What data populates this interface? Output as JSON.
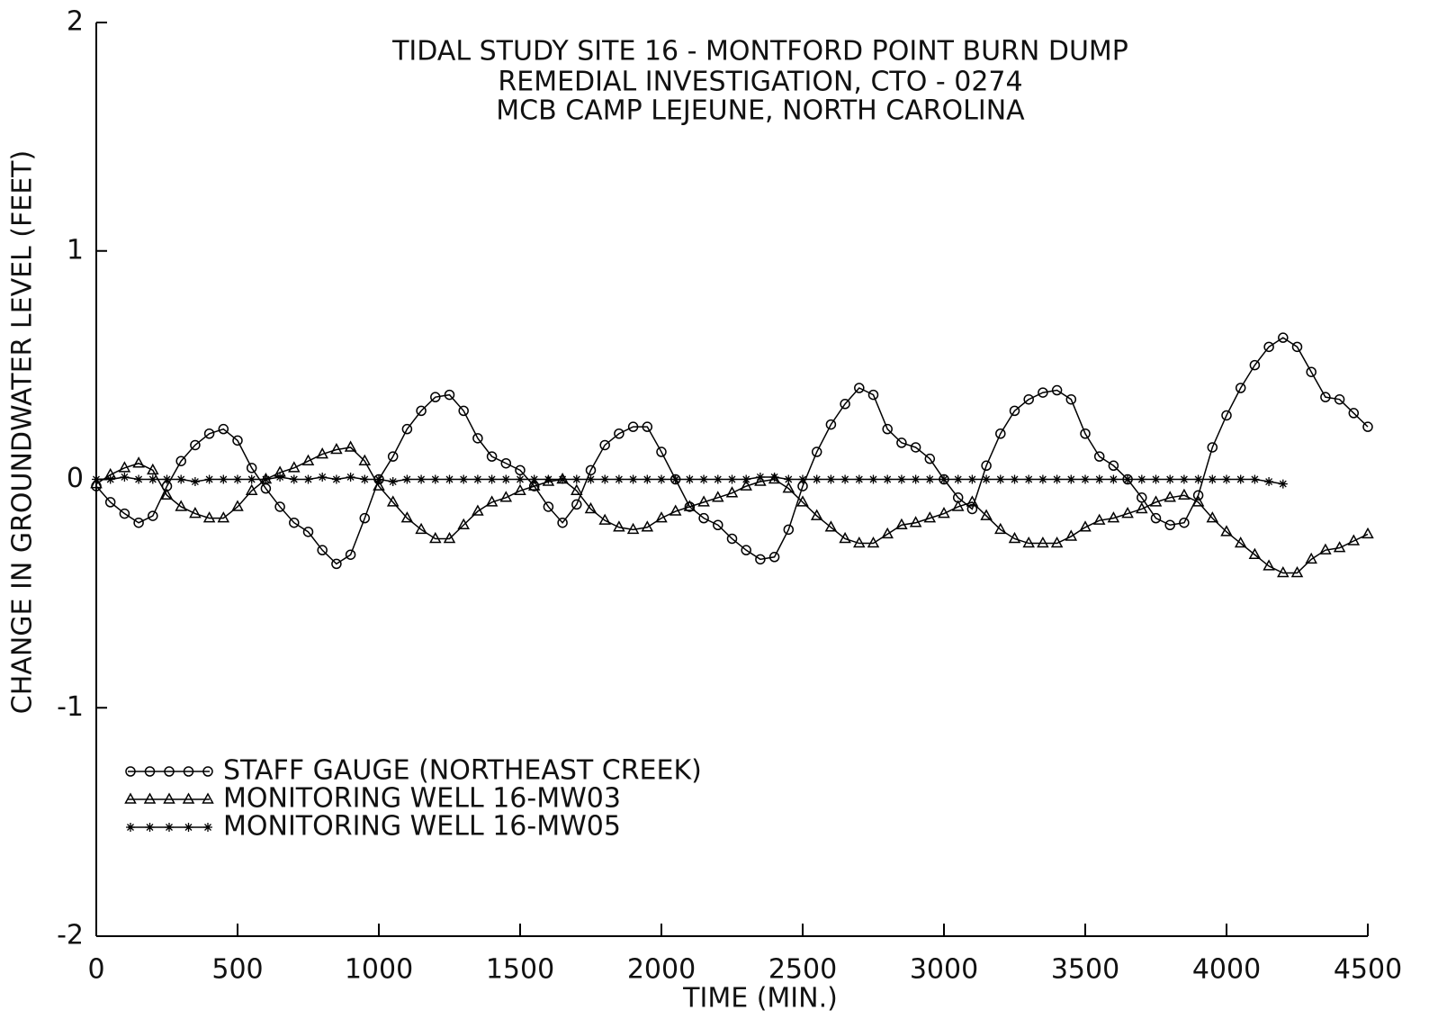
{
  "chart_data": {
    "type": "line",
    "title": [
      "TIDAL STUDY SITE 16 - MONTFORD POINT BURN DUMP",
      "REMEDIAL INVESTIGATION, CTO - 0274",
      "MCB CAMP LEJEUNE, NORTH CAROLINA"
    ],
    "x_label": "TIME (MIN.)",
    "y_label": "CHANGE IN GROUNDWATER LEVEL (FEET)",
    "x": [
      0,
      50,
      100,
      150,
      200,
      250,
      300,
      350,
      400,
      450,
      500,
      550,
      600,
      650,
      700,
      750,
      800,
      850,
      900,
      950,
      1000,
      1050,
      1100,
      1150,
      1200,
      1250,
      1300,
      1350,
      1400,
      1450,
      1500,
      1550,
      1600,
      1650,
      1700,
      1750,
      1800,
      1850,
      1900,
      1950,
      2000,
      2050,
      2100,
      2150,
      2200,
      2250,
      2300,
      2350,
      2400,
      2450,
      2500,
      2550,
      2600,
      2650,
      2700,
      2750,
      2800,
      2850,
      2900,
      2950,
      3000,
      3050,
      3100,
      3150,
      3200,
      3250,
      3300,
      3350,
      3400,
      3450,
      3500,
      3550,
      3600,
      3650,
      3700,
      3750,
      3800,
      3850,
      3900,
      3950,
      4000,
      4050,
      4100,
      4150,
      4200,
      4250,
      4300,
      4350,
      4400,
      4450,
      4500
    ],
    "series": [
      {
        "name": "STAFF GAUGE (NORTHEAST CREEK)",
        "color": "#000000",
        "marker": "circle",
        "values": [
          -0.03,
          -0.1,
          -0.15,
          -0.19,
          -0.16,
          -0.03,
          0.08,
          0.15,
          0.2,
          0.22,
          0.17,
          0.05,
          -0.04,
          -0.12,
          -0.19,
          -0.23,
          -0.31,
          -0.37,
          -0.33,
          -0.17,
          0.0,
          0.1,
          0.22,
          0.3,
          0.36,
          0.37,
          0.3,
          0.18,
          0.1,
          0.07,
          0.04,
          -0.03,
          -0.12,
          -0.19,
          -0.11,
          0.04,
          0.15,
          0.2,
          0.23,
          0.23,
          0.12,
          0.0,
          -0.12,
          -0.17,
          -0.2,
          -0.26,
          -0.31,
          -0.35,
          -0.34,
          -0.22,
          -0.03,
          0.12,
          0.24,
          0.33,
          0.4,
          0.37,
          0.22,
          0.16,
          0.14,
          0.09,
          0.0,
          -0.08,
          -0.13,
          0.06,
          0.2,
          0.3,
          0.35,
          0.38,
          0.39,
          0.35,
          0.2,
          0.1,
          0.06,
          0.0,
          -0.08,
          -0.17,
          -0.2,
          -0.19,
          -0.07,
          0.14,
          0.28,
          0.4,
          0.5,
          0.58,
          0.62,
          0.58,
          0.47,
          0.36,
          0.35,
          0.29,
          0.23
        ]
      },
      {
        "name": "MONITORING WELL 16-MW03",
        "color": "#000000",
        "marker": "triangle",
        "values": [
          -0.02,
          0.02,
          0.05,
          0.07,
          0.04,
          -0.07,
          -0.12,
          -0.15,
          -0.17,
          -0.17,
          -0.12,
          -0.05,
          0.0,
          0.03,
          0.05,
          0.08,
          0.11,
          0.13,
          0.14,
          0.08,
          -0.03,
          -0.1,
          -0.17,
          -0.22,
          -0.26,
          -0.26,
          -0.2,
          -0.14,
          -0.1,
          -0.08,
          -0.05,
          -0.03,
          -0.01,
          0.0,
          -0.05,
          -0.13,
          -0.18,
          -0.21,
          -0.22,
          -0.21,
          -0.17,
          -0.14,
          -0.12,
          -0.1,
          -0.08,
          -0.06,
          -0.03,
          -0.01,
          0.0,
          -0.04,
          -0.1,
          -0.16,
          -0.21,
          -0.26,
          -0.28,
          -0.28,
          -0.24,
          -0.2,
          -0.19,
          -0.17,
          -0.15,
          -0.12,
          -0.1,
          -0.16,
          -0.22,
          -0.26,
          -0.28,
          -0.28,
          -0.28,
          -0.25,
          -0.21,
          -0.18,
          -0.17,
          -0.15,
          -0.13,
          -0.1,
          -0.08,
          -0.07,
          -0.1,
          -0.17,
          -0.23,
          -0.28,
          -0.33,
          -0.38,
          -0.41,
          -0.41,
          -0.35,
          -0.31,
          -0.3,
          -0.27,
          -0.24
        ]
      },
      {
        "name": "MONITORING WELL 16-MW05",
        "color": "#000000",
        "marker": "star",
        "values": [
          0.0,
          0.0,
          0.01,
          0.0,
          0.0,
          0.0,
          0.0,
          -0.01,
          0.0,
          0.0,
          0.0,
          0.0,
          0.0,
          0.01,
          0.0,
          0.0,
          0.01,
          0.0,
          0.01,
          0.0,
          0.0,
          -0.01,
          0.0,
          0.0,
          0.0,
          0.0,
          0.0,
          0.0,
          0.0,
          0.0,
          0.0,
          0.0,
          0.0,
          0.0,
          0.0,
          0.0,
          0.0,
          0.0,
          0.0,
          0.0,
          0.0,
          0.0,
          0.0,
          0.0,
          0.0,
          0.0,
          0.0,
          0.01,
          0.01,
          0.0,
          0.0,
          0.0,
          0.0,
          0.0,
          0.0,
          0.0,
          0.0,
          0.0,
          0.0,
          0.0,
          0.0,
          0.0,
          0.0,
          0.0,
          0.0,
          0.0,
          0.0,
          0.0,
          0.0,
          0.0,
          0.0,
          0.0,
          0.0,
          0.0,
          0.0,
          0.0,
          0.0,
          0.0,
          0.0,
          0.0,
          0.0,
          0.0,
          0.0,
          -0.01,
          -0.02,
          null,
          null,
          null,
          null,
          null,
          null
        ]
      }
    ],
    "xlim": [
      0,
      4500
    ],
    "xticks": [
      0,
      500,
      1000,
      1500,
      2000,
      2500,
      3000,
      3500,
      4000,
      4500
    ],
    "ylim": [
      -2,
      2
    ],
    "yticks": [
      -2,
      -1,
      0,
      1,
      2
    ],
    "legend": "lower left",
    "grid": false
  }
}
